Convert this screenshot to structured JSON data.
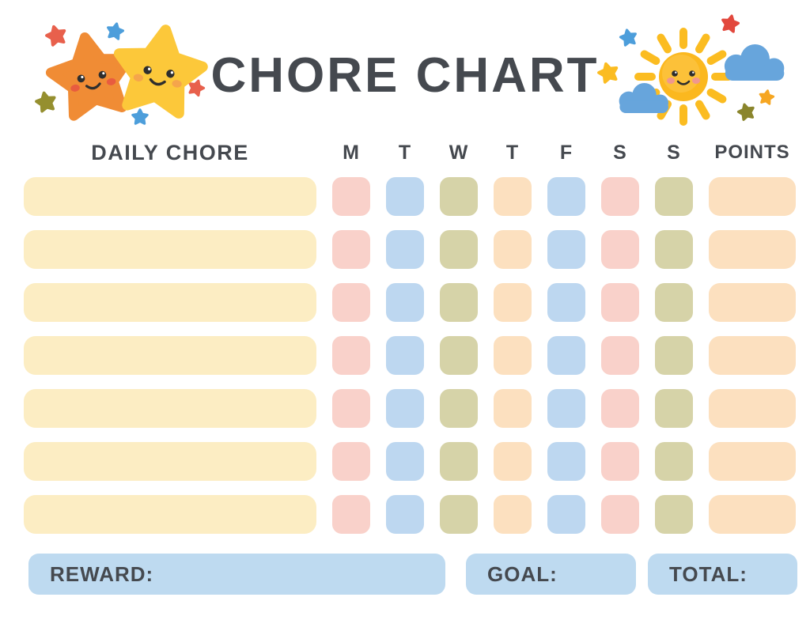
{
  "title": "CHORE CHART",
  "header": {
    "daily_chore": "DAILY CHORE",
    "days": [
      "M",
      "T",
      "W",
      "T",
      "F",
      "S",
      "S"
    ],
    "points": "POINTS"
  },
  "table": {
    "row_count": 7,
    "chore_cell_color": "cream",
    "day_color_pattern": [
      "pink",
      "blue",
      "olive",
      "peach",
      "blue",
      "pink",
      "olive"
    ],
    "points_cell_color": "peach",
    "cell_values": "empty"
  },
  "footer": {
    "reward_label": "REWARD:",
    "goal_label": "GOAL:",
    "total_label": "TOTAL:"
  },
  "decorations": {
    "left_icons": [
      "orange-star-face-icon",
      "yellow-star-face-icon",
      "mini-star-icon x5"
    ],
    "right_icons": [
      "sun-face-icon",
      "cloud-icon x2",
      "mini-star-icon x5"
    ]
  },
  "colors": {
    "ink": "#45494F",
    "cream": "#FCEDC3",
    "pink": "#F9D1CA",
    "blue": "#BDD7F0",
    "olive": "#D6D3A8",
    "peach": "#FCE0BF",
    "footer-blue": "#BEDAF0",
    "star-orange": "#F08C35",
    "star-yellow": "#FCC83A",
    "cheek-red": "#E85C3F",
    "cheek-orange": "#F5A54B",
    "cheek-pink": "#F0978F",
    "mini-red": "#E8604C",
    "mini-blue": "#4D9EDB",
    "mini-olive": "#958F2F",
    "sun-yellow": "#FBB81F",
    "ray-yellow": "#FBBC21",
    "cloud-blue": "#67A5DC",
    "face-ink": "#2E2E2E"
  }
}
